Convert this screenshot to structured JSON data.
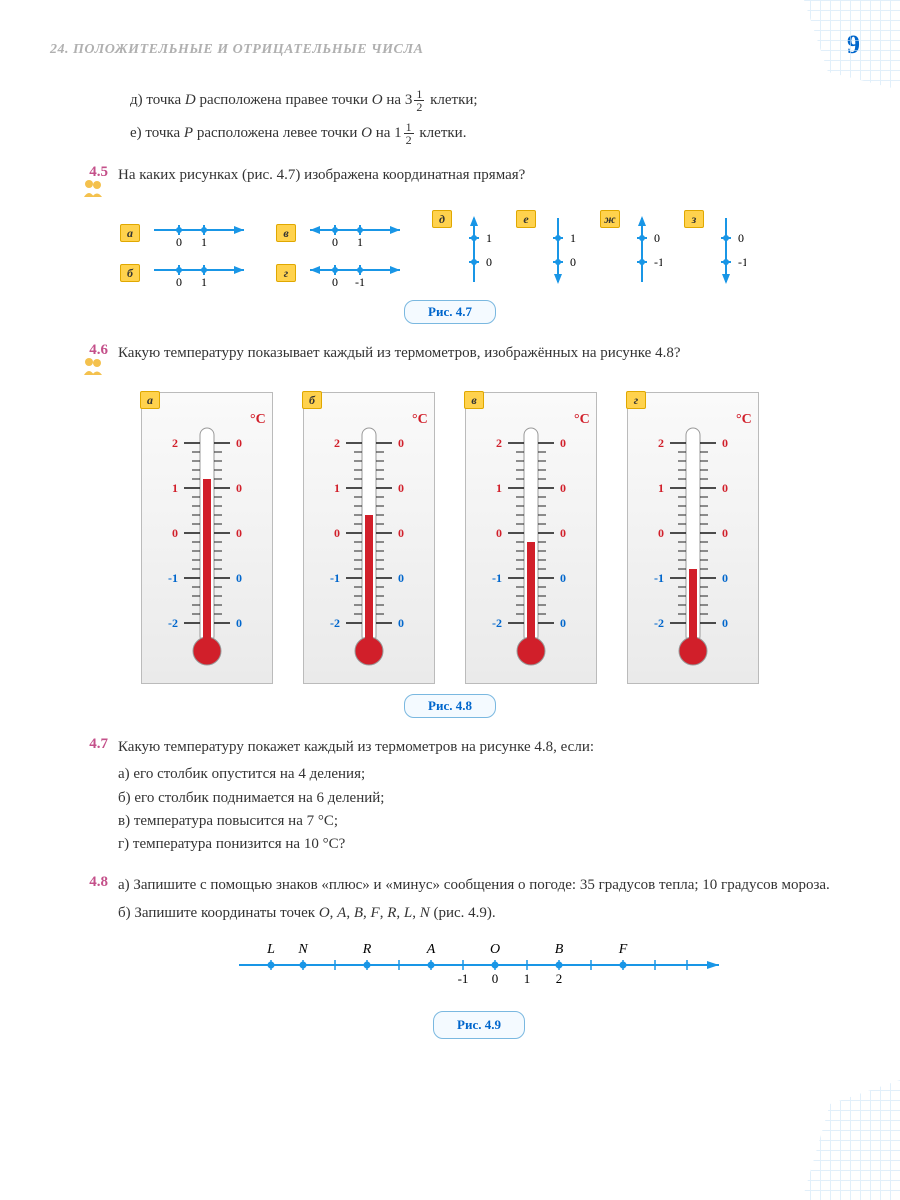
{
  "header": {
    "chapter": "24. ПОЛОЖИТЕЛЬНЫЕ И ОТРИЦАТЕЛЬНЫЕ ЧИСЛА",
    "page_number": "9"
  },
  "colors": {
    "accent_pink": "#c4508a",
    "accent_blue": "#0066cc",
    "line_blue": "#1996e6",
    "letter_bg": "#ffd24d",
    "thermo_red": "#d11f2a",
    "thermo_blue_text": "#0066cc",
    "scale_dark": "#222"
  },
  "pre_items": {
    "d": "д) точка D расположена правее точки O на 3½ клетки;",
    "e": "е) точка P расположена левее точки O на 1½ клетки."
  },
  "ex45": {
    "num": "4.5",
    "text": "На каких рисунках (рис. 4.7) изображена координатная прямая?",
    "caption": "Рис. 4.7",
    "lines": {
      "a": {
        "ticks": [
          "0",
          "1"
        ],
        "arrow": "right",
        "origin": 0,
        "labels_below": true
      },
      "b": {
        "ticks": [
          "0",
          "1"
        ],
        "arrow": "right",
        "origin": -1,
        "labels_below": true
      },
      "v": {
        "ticks": [
          "0",
          "1"
        ],
        "arrow": "both",
        "labels_below": true
      },
      "g": {
        "ticks": [
          "0",
          "-1"
        ],
        "arrow": "both",
        "labels_below": true
      },
      "d": {
        "ticks": [
          "1",
          "0"
        ],
        "arrow": "up",
        "vertical": true
      },
      "e": {
        "ticks": [
          "1",
          "0"
        ],
        "arrow": "down",
        "vertical": true
      },
      "zh": {
        "ticks": [
          "0",
          "-1"
        ],
        "arrow": "up",
        "vertical": true
      },
      "z": {
        "ticks": [
          "0",
          "-1"
        ],
        "arrow": "down",
        "vertical": true
      }
    },
    "letters": [
      "а",
      "б",
      "в",
      "г",
      "д",
      "е",
      "ж",
      "з"
    ]
  },
  "ex46": {
    "num": "4.6",
    "text": "Какую температуру показывает каждый из термометров, изображённых на рисунке 4.8?",
    "caption": "Рис. 4.8",
    "unit": "°C",
    "scale": {
      "min": -20,
      "max": 20,
      "major": 10,
      "minor": 2,
      "left_labels": [
        "2",
        "1",
        "0",
        "-1",
        "-2"
      ],
      "right_labels": [
        "0",
        "0",
        "0",
        "0",
        "0"
      ]
    },
    "thermos": [
      {
        "letter": "а",
        "value": 12
      },
      {
        "letter": "б",
        "value": 4
      },
      {
        "letter": "в",
        "value": -2
      },
      {
        "letter": "г",
        "value": -8
      }
    ]
  },
  "ex47": {
    "num": "4.7",
    "text": "Какую температуру покажет каждый из термометров на рисунке 4.8, если:",
    "items": [
      "а) его столбик опустится на 4 деления;",
      "б) его столбик поднимается на 6 делений;",
      "в) температура повысится на 7 °C;",
      "г) температура понизится на 10 °C?"
    ]
  },
  "ex48": {
    "num": "4.8",
    "text_a": "а) Запишите с помощью знаков «плюс» и «минус» сообщения о погоде: 35 градусов тепла; 10 градусов мороза.",
    "text_b": "б) Запишите координаты точек O, A, B, F, R, L, N (рис. 4.9).",
    "caption": "Рис. 4.9",
    "numberline": {
      "points": [
        {
          "label": "L",
          "x": -7
        },
        {
          "label": "N",
          "x": -6
        },
        {
          "label": "R",
          "x": -4
        },
        {
          "label": "A",
          "x": -2
        },
        {
          "label": "O",
          "x": 0
        },
        {
          "label": "B",
          "x": 2
        },
        {
          "label": "F",
          "x": 4
        }
      ],
      "ticks": [
        -1,
        0,
        1,
        2
      ],
      "xmin": -8,
      "xmax": 7
    }
  }
}
